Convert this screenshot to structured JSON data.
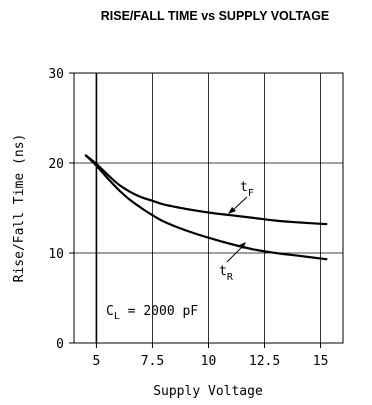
{
  "chart_data": {
    "type": "line",
    "title": "RISE/FALL TIME vs SUPPLY VOLTAGE",
    "xlabel": "Supply Voltage",
    "ylabel": "Rise/Fall Time (ns)",
    "xlim": [
      4,
      16
    ],
    "ylim": [
      0,
      30
    ],
    "xticks": [
      5,
      7.5,
      10,
      12.5,
      15
    ],
    "xtick_labels": [
      "5",
      "7.5",
      "10",
      "12.5",
      "15"
    ],
    "yticks": [
      0,
      10,
      20,
      30
    ],
    "ytick_labels": [
      "0",
      "10",
      "20",
      "30"
    ],
    "grid": true,
    "series": [
      {
        "name": "tF",
        "x": [
          4.5,
          5,
          5.5,
          6,
          6.5,
          7,
          7.5,
          8,
          9,
          10,
          11,
          12,
          13,
          14,
          15.3
        ],
        "values": [
          20.9,
          19.9,
          18.7,
          17.6,
          16.8,
          16.2,
          15.8,
          15.4,
          14.9,
          14.5,
          14.2,
          13.9,
          13.6,
          13.4,
          13.2
        ]
      },
      {
        "name": "tR",
        "x": [
          4.5,
          5,
          5.5,
          6,
          6.5,
          7,
          7.5,
          8,
          9,
          10,
          11,
          12,
          13,
          14,
          15.3
        ],
        "values": [
          20.9,
          19.7,
          18.3,
          17.0,
          15.9,
          15.0,
          14.2,
          13.5,
          12.5,
          11.7,
          11.0,
          10.4,
          10.0,
          9.7,
          9.3
        ]
      }
    ],
    "annotations": {
      "tF": {
        "main": "t",
        "sub": "F"
      },
      "tR": {
        "main": "t",
        "sub": "R"
      },
      "condition": {
        "text": "C",
        "sub": "L",
        "rest": " = 2000 pF"
      }
    }
  }
}
